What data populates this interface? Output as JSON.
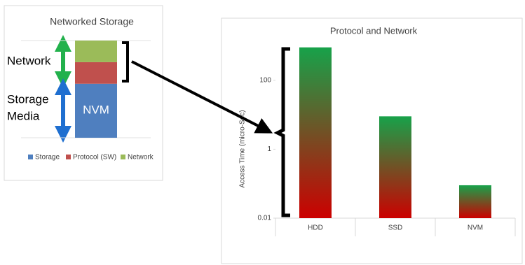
{
  "chart_data": [
    {
      "type": "stacked_bar",
      "title": "Networked Storage",
      "series": [
        {
          "name": "Storage",
          "color": "#4f7fbf",
          "values": [
            50
          ]
        },
        {
          "name": "Protocol (SW)",
          "color": "#c0504d",
          "values": [
            20
          ]
        },
        {
          "name": "Network",
          "color": "#9bbb59",
          "values": [
            20
          ]
        }
      ],
      "ylim": [
        0,
        90
      ],
      "annotations": [
        "Network",
        "Storage",
        "Media",
        "NVM"
      ]
    },
    {
      "type": "bar",
      "title": "Protocol and Network",
      "y_label": "Access Time (micro-Sec)",
      "categories": [
        "HDD",
        "SSD",
        "NVM"
      ],
      "values": [
        900,
        9,
        0.09
      ],
      "log_scale": true,
      "ylim": [
        0.01,
        1000
      ],
      "yticks": [
        0.01,
        1,
        100
      ],
      "grid": false,
      "color_top": "#17a24a",
      "color_bottom": "#cc0000"
    }
  ]
}
